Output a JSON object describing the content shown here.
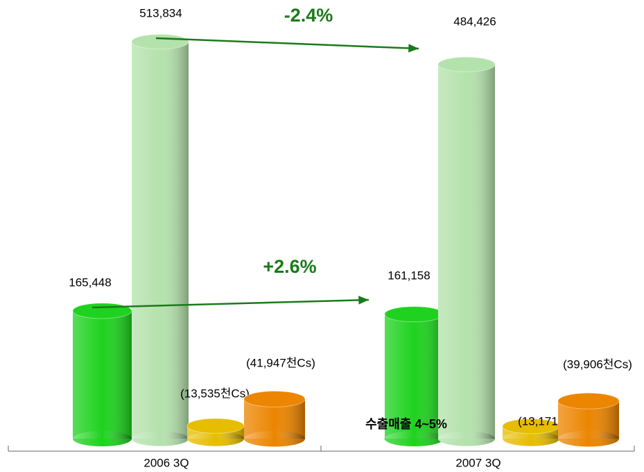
{
  "chart_data": {
    "type": "bar",
    "categories": [
      "2006 3Q",
      "2007 3Q"
    ],
    "series": [
      {
        "color": "#1fd21f",
        "values": [
          165448,
          161158
        ],
        "value_labels": [
          "165,448",
          "161,158"
        ]
      },
      {
        "color": "#b4e2ac",
        "values": [
          513834,
          484426
        ],
        "value_labels": [
          "513,834",
          "484,426"
        ]
      },
      {
        "color": "#e6bd00",
        "values": [
          13535,
          13171
        ],
        "value_labels": [
          "(13,535천Cs)",
          "(13,171천Cs)"
        ]
      },
      {
        "color": "#ec8500",
        "values": [
          41947,
          39906
        ],
        "value_labels": [
          "(41,947천Cs)",
          "(39,906천Cs)"
        ]
      }
    ],
    "annotations": [
      "-2.4%",
      "+2.6%",
      "수출매출 4~5%"
    ]
  }
}
